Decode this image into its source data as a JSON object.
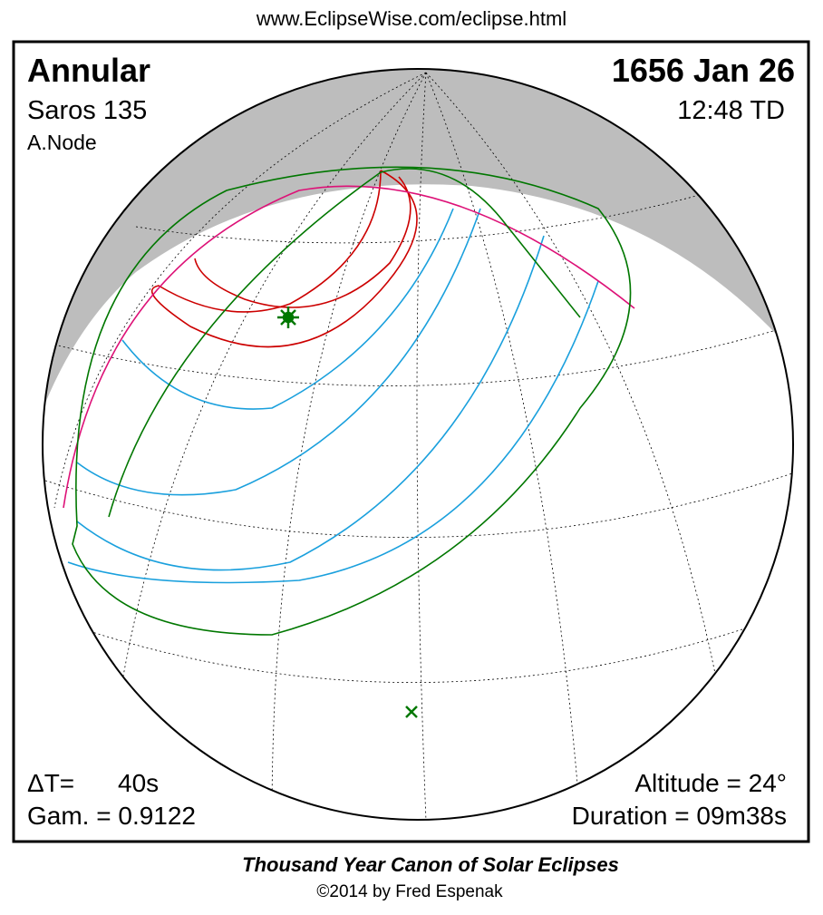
{
  "header": {
    "url": "www.EclipseWise.com/eclipse.html"
  },
  "eclipse": {
    "type": "Annular",
    "saros": "Saros 135",
    "node": "A.Node",
    "date": "1656 Jan 26",
    "time": "12:48 TD"
  },
  "stats": {
    "delta_t_label": "ΔT=",
    "delta_t_value": "40s",
    "gamma": "Gam. = 0.9122",
    "altitude": "Altitude = 24°",
    "duration": "Duration = 09m38s"
  },
  "footer": {
    "title": "Thousand Year Canon of Solar Eclipses",
    "copyright": "©2014 by Fred Espenak"
  }
}
